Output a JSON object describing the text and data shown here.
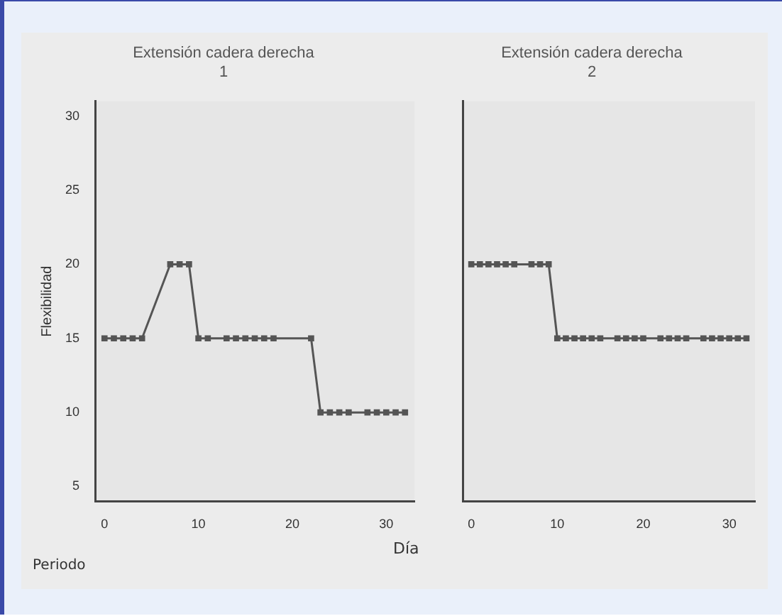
{
  "chart_data": [
    {
      "type": "line",
      "title": "Extensión cadera derecha",
      "subtitle": "1",
      "xlabel": "Día",
      "ylabel": "Flexibilidad",
      "annotations": [
        "Periodo"
      ],
      "xlim": [
        -1,
        33
      ],
      "xticks": [
        0,
        10,
        20,
        30
      ],
      "ylim": [
        4,
        31
      ],
      "yticks": [
        5,
        10,
        15,
        20,
        25,
        30
      ],
      "marker": "square",
      "line_style": "solid",
      "legend": false,
      "grid": false,
      "series": [
        {
          "color": "#555555",
          "x": [
            0,
            1,
            2,
            3,
            4,
            7,
            8,
            9,
            10,
            11,
            13,
            14,
            15,
            16,
            17,
            18,
            22,
            23,
            24,
            25,
            26,
            28,
            29,
            30,
            31,
            32
          ],
          "values": [
            15,
            15,
            15,
            15,
            15,
            20,
            20,
            20,
            15,
            15,
            15,
            15,
            15,
            15,
            15,
            15,
            15,
            10,
            10,
            10,
            10,
            10,
            10,
            10,
            10,
            10
          ]
        }
      ]
    },
    {
      "type": "line",
      "title": "Extensión cadera derecha",
      "subtitle": "2",
      "xlim": [
        -1,
        33
      ],
      "xticks": [
        0,
        10,
        20,
        30
      ],
      "ylim": [
        4,
        31
      ],
      "yticks": [
        5,
        10,
        15,
        20,
        25,
        30
      ],
      "tick_labels": "x",
      "marker": "square",
      "line_style": "solid",
      "legend": false,
      "grid": false,
      "series": [
        {
          "color": "#555555",
          "x": [
            0,
            1,
            2,
            3,
            4,
            5,
            7,
            8,
            9,
            10,
            11,
            12,
            13,
            14,
            15,
            17,
            18,
            19,
            20,
            22,
            23,
            24,
            25,
            27,
            28,
            29,
            30,
            31,
            32
          ],
          "values": [
            20,
            20,
            20,
            20,
            20,
            20,
            20,
            20,
            20,
            15,
            15,
            15,
            15,
            15,
            15,
            15,
            15,
            15,
            15,
            15,
            15,
            15,
            15,
            15,
            15,
            15,
            15,
            15,
            15
          ]
        }
      ]
    }
  ]
}
